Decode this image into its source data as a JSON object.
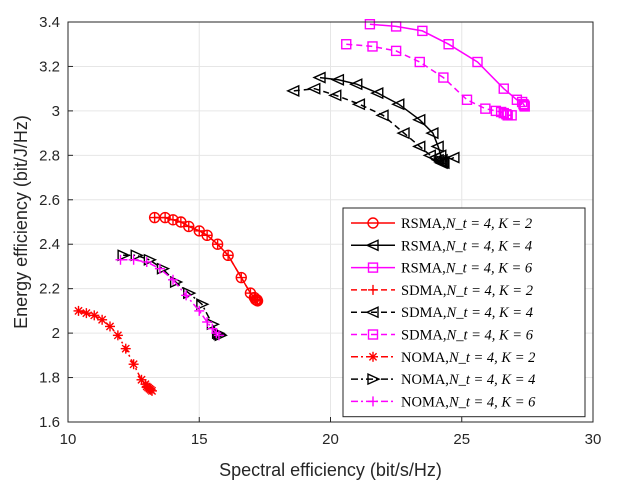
{
  "chart_data": {
    "type": "line",
    "title": "",
    "xlabel": "Spectral efficiency (bit/s/Hz)",
    "ylabel": "Energy efficiency (bit/J/Hz)",
    "xlim": [
      10,
      30
    ],
    "ylim": [
      1.6,
      3.4
    ],
    "xticks": [
      "10",
      "15",
      "20",
      "25",
      "30"
    ],
    "yticks": [
      "1.6",
      "1.8",
      "2",
      "2.2",
      "2.4",
      "2.6",
      "2.8",
      "3",
      "3.2",
      "3.4"
    ],
    "grid": true,
    "legend_position": "bottom-right",
    "series": [
      {
        "name": "RSMA,N_t = 4, K = 2",
        "color": "#ff0000",
        "line": "solid",
        "marker": "circle",
        "x": [
          13.3,
          13.7,
          14.0,
          14.3,
          14.6,
          15.0,
          15.3,
          15.7,
          16.1,
          16.6,
          16.95,
          17.1,
          17.15,
          17.2,
          17.22
        ],
        "y": [
          2.52,
          2.52,
          2.51,
          2.5,
          2.48,
          2.46,
          2.44,
          2.4,
          2.35,
          2.25,
          2.18,
          2.16,
          2.15,
          2.15,
          2.145
        ]
      },
      {
        "name": "RSMA,N_t = 4, K = 4",
        "color": "#000000",
        "line": "solid",
        "marker": "triangle-left",
        "x": [
          19.6,
          20.3,
          21.0,
          21.8,
          22.6,
          23.4,
          23.9,
          24.1,
          24.2,
          24.25,
          24.3,
          24.32
        ],
        "y": [
          3.15,
          3.14,
          3.12,
          3.08,
          3.03,
          2.96,
          2.9,
          2.84,
          2.8,
          2.78,
          2.77,
          2.765
        ]
      },
      {
        "name": "RSMA,N_t = 4, K = 6",
        "color": "#ff00ff",
        "line": "solid",
        "marker": "square",
        "x": [
          21.5,
          22.5,
          23.5,
          24.5,
          25.6,
          26.6,
          27.1,
          27.3,
          27.35,
          27.38,
          27.4
        ],
        "y": [
          3.39,
          3.38,
          3.36,
          3.3,
          3.22,
          3.1,
          3.05,
          3.04,
          3.03,
          3.025,
          3.02
        ]
      },
      {
        "name": "SDMA,N_t = 4, K = 2",
        "color": "#ff0000",
        "line": "dashed",
        "marker": "plus",
        "x": [
          13.3,
          13.7,
          14.0,
          14.3,
          14.6,
          15.0,
          15.3,
          15.7,
          16.1,
          16.6,
          16.95,
          17.1,
          17.15,
          17.2,
          17.22
        ],
        "y": [
          2.52,
          2.52,
          2.51,
          2.5,
          2.48,
          2.46,
          2.44,
          2.4,
          2.35,
          2.25,
          2.18,
          2.16,
          2.15,
          2.15,
          2.145
        ]
      },
      {
        "name": "SDMA,N_t = 4, K = 4",
        "color": "#000000",
        "line": "dashed",
        "marker": "triangle-left",
        "x": [
          18.6,
          19.4,
          20.2,
          21.1,
          22.0,
          22.8,
          23.4,
          23.8,
          24.0,
          24.1,
          24.2,
          24.25,
          24.7
        ],
        "y": [
          3.09,
          3.1,
          3.07,
          3.03,
          2.98,
          2.9,
          2.84,
          2.8,
          2.79,
          2.78,
          2.77,
          2.765,
          2.79
        ]
      },
      {
        "name": "SDMA,N_t = 4, K = 6",
        "color": "#ff00ff",
        "line": "dashed",
        "marker": "square",
        "x": [
          20.6,
          21.6,
          22.5,
          23.4,
          24.3,
          25.2,
          25.9,
          26.3,
          26.5,
          26.6,
          26.7,
          26.75,
          26.9
        ],
        "y": [
          3.3,
          3.29,
          3.27,
          3.22,
          3.15,
          3.05,
          3.01,
          3.0,
          2.995,
          2.99,
          2.985,
          2.98,
          2.98
        ]
      },
      {
        "name": "NOMA,N_t = 4, K = 2",
        "color": "#ff0000",
        "line": "dashdot",
        "marker": "asterisk",
        "x": [
          10.4,
          10.7,
          11.0,
          11.3,
          11.6,
          11.9,
          12.2,
          12.5,
          12.8,
          12.95,
          13.0,
          13.05,
          13.1,
          13.15,
          13.2
        ],
        "y": [
          2.1,
          2.09,
          2.08,
          2.06,
          2.03,
          1.99,
          1.93,
          1.86,
          1.79,
          1.77,
          1.76,
          1.755,
          1.75,
          1.745,
          1.74
        ]
      },
      {
        "name": "NOMA,N_t = 4, K = 4",
        "color": "#000000",
        "line": "dashdot",
        "marker": "triangle-right",
        "x": [
          12.1,
          12.6,
          13.1,
          13.6,
          14.1,
          14.6,
          15.1,
          15.5,
          15.7,
          15.75,
          15.8
        ],
        "y": [
          2.35,
          2.35,
          2.33,
          2.29,
          2.23,
          2.18,
          2.13,
          2.04,
          2.0,
          1.995,
          1.99
        ]
      },
      {
        "name": "NOMA,N_t = 4, K = 6",
        "color": "#ff00ff",
        "line": "dashdot",
        "marker": "plus",
        "x": [
          12.0,
          12.5,
          13.0,
          13.5,
          14.0,
          14.5,
          15.0,
          15.3,
          15.5,
          15.65,
          15.75
        ],
        "y": [
          2.33,
          2.33,
          2.32,
          2.29,
          2.24,
          2.17,
          2.1,
          2.05,
          2.02,
          2.0,
          1.99
        ]
      }
    ]
  },
  "legend": [
    {
      "label": "RSMA,",
      "math": "N_t = 4, K = 2"
    },
    {
      "label": "RSMA,",
      "math": "N_t = 4, K = 4"
    },
    {
      "label": "RSMA,",
      "math": "N_t = 4, K = 6"
    },
    {
      "label": "SDMA,",
      "math": "N_t = 4, K = 2"
    },
    {
      "label": "SDMA,",
      "math": "N_t = 4, K = 4"
    },
    {
      "label": "SDMA,",
      "math": "N_t = 4, K = 6"
    },
    {
      "label": "NOMA,",
      "math": "N_t = 4, K = 2"
    },
    {
      "label": "NOMA,",
      "math": "N_t = 4, K = 4"
    },
    {
      "label": "NOMA,",
      "math": "N_t = 4, K = 6"
    }
  ]
}
